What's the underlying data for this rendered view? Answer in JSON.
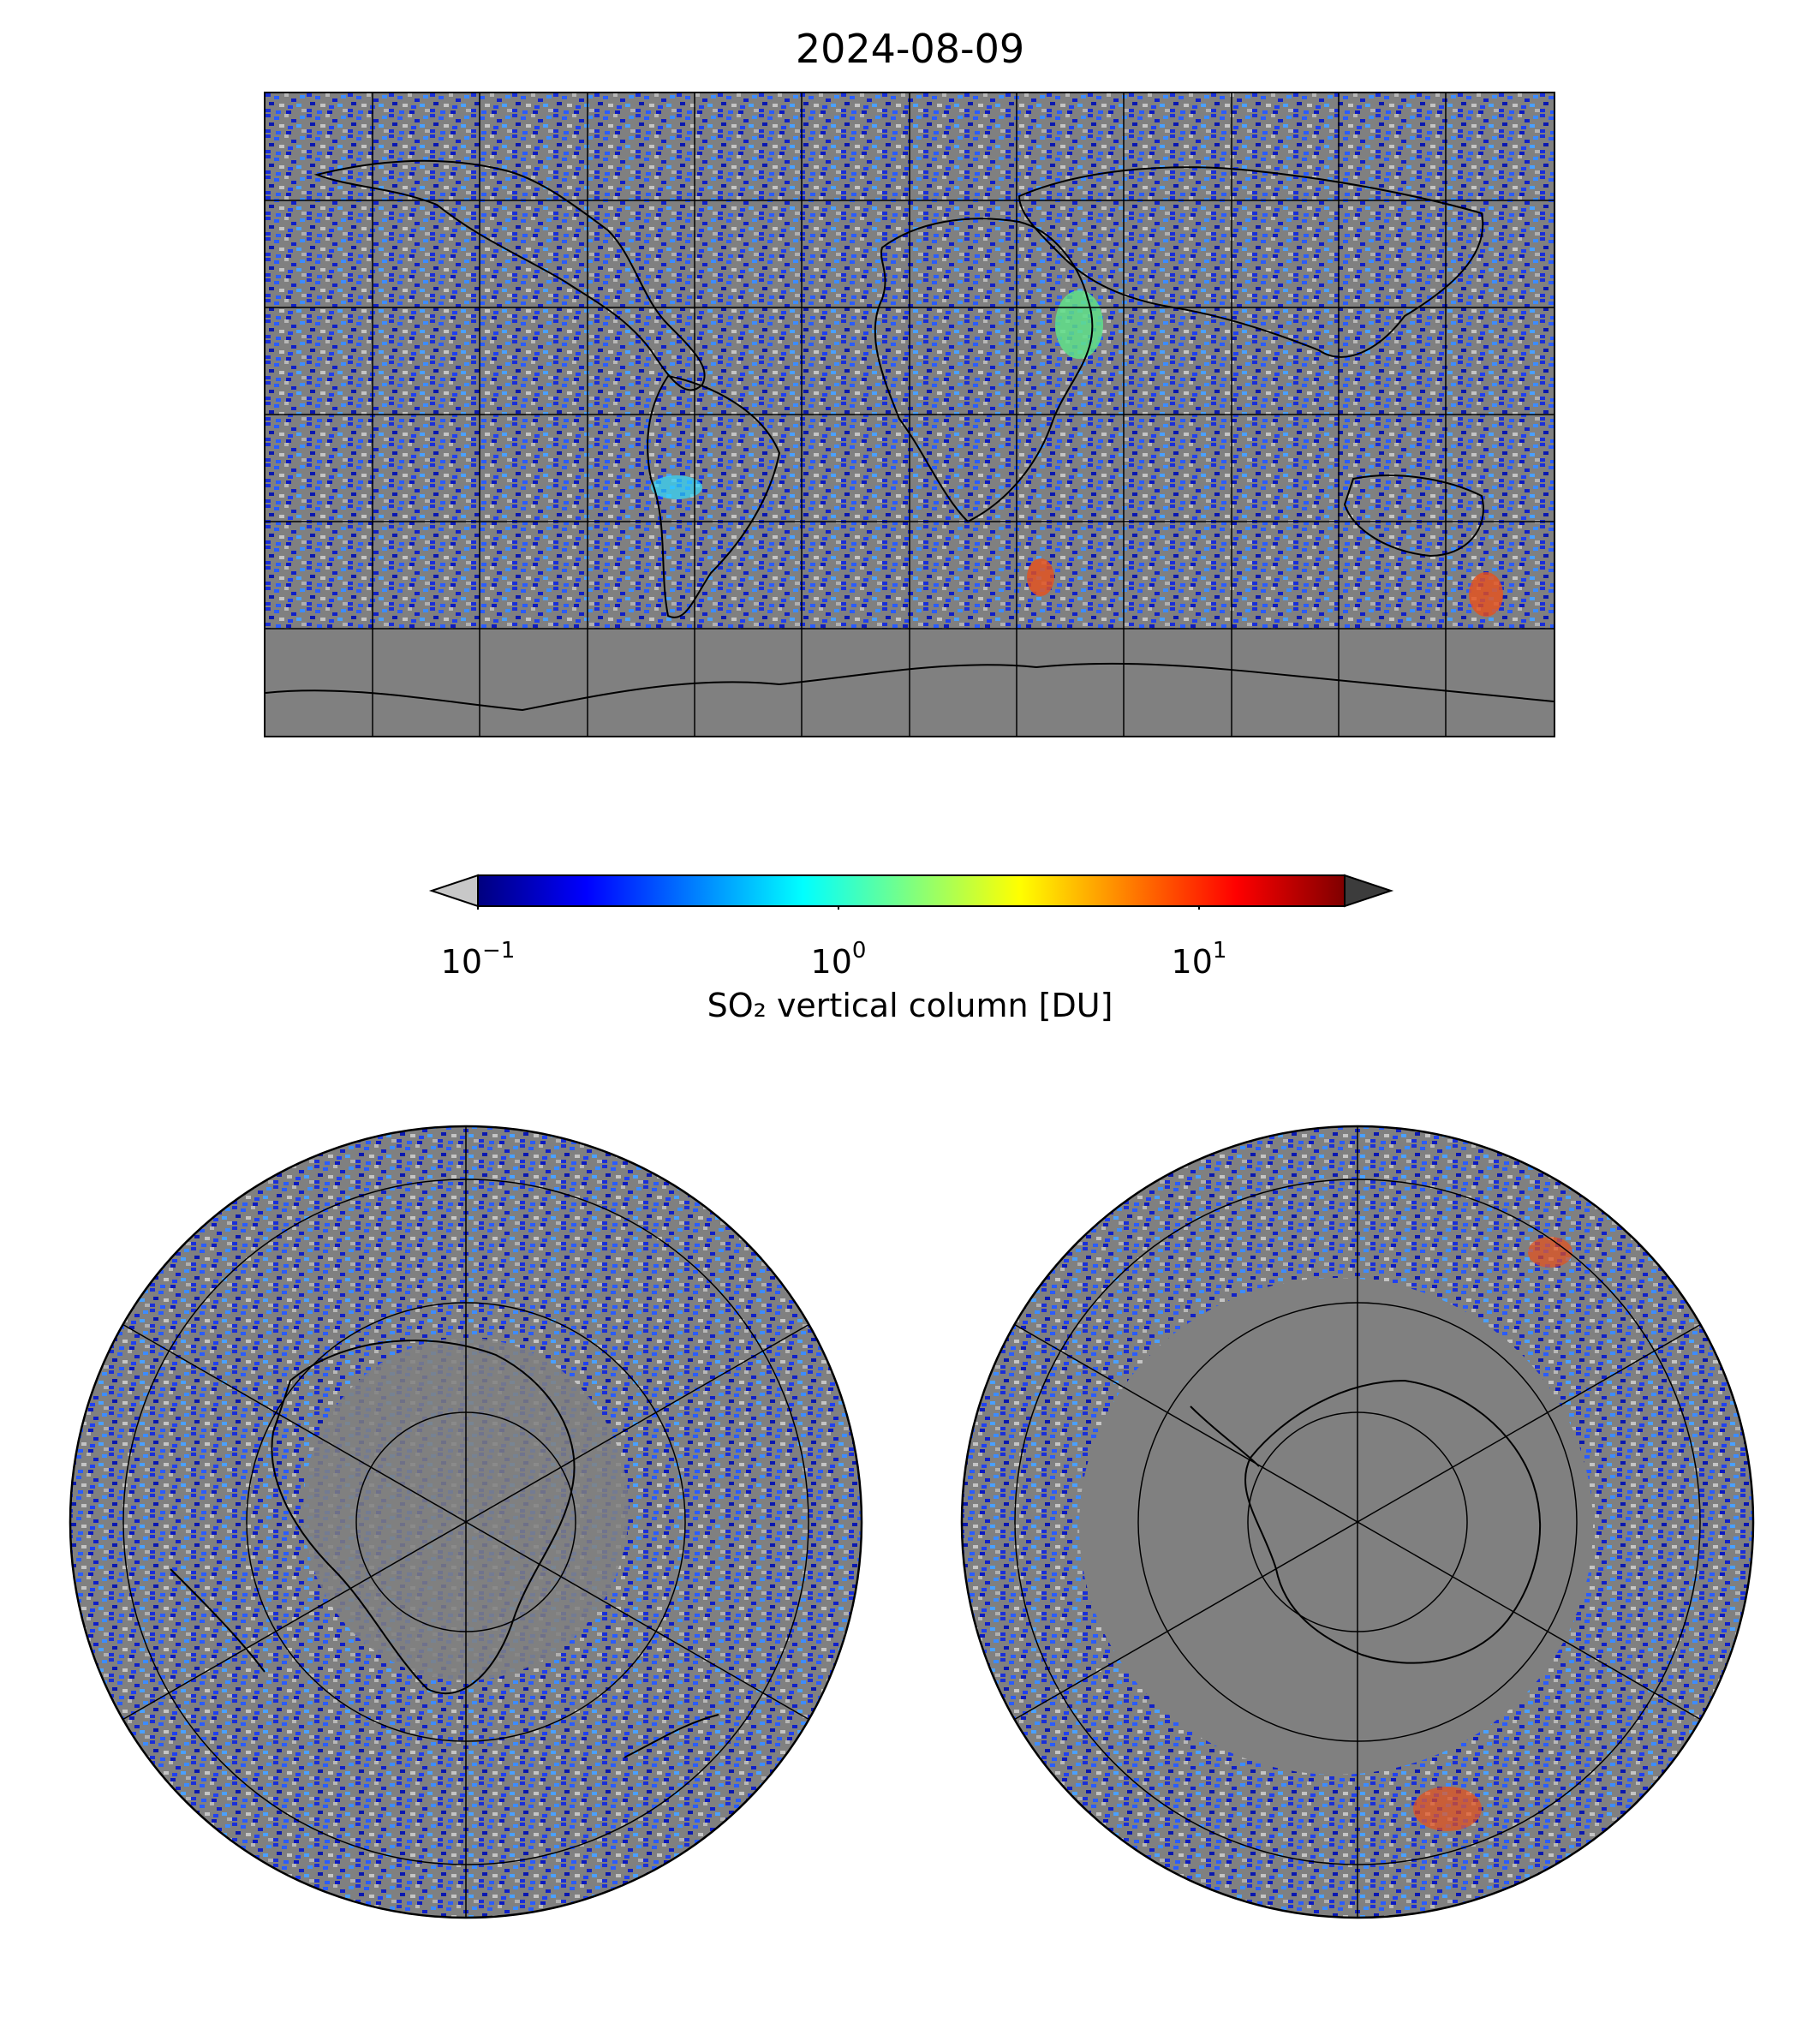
{
  "figure": {
    "title": "2024-08-09"
  },
  "colorbar": {
    "label": "SO₂ vertical column [DU]",
    "scale": "log",
    "range": [
      0.1,
      25
    ],
    "ticks": [
      {
        "base": "10",
        "exp": "−1",
        "value": 0.1
      },
      {
        "base": "10",
        "exp": "0",
        "value": 1
      },
      {
        "base": "10",
        "exp": "1",
        "value": 10
      }
    ],
    "colormap": [
      "#00007f",
      "#0000ff",
      "#007fff",
      "#00ffff",
      "#7fff7f",
      "#ffff00",
      "#ff7f00",
      "#ff0000",
      "#7f0000"
    ],
    "under_color": "#c8c8c8",
    "over_color": "#3c3c3c",
    "nodata_color": "#808080"
  },
  "panels": [
    {
      "name": "global",
      "projection": "plate-carree",
      "gridlines": {
        "lon_step": 30,
        "lat_step": 30
      }
    },
    {
      "name": "north-polar",
      "projection": "north-polar-stereographic"
    },
    {
      "name": "south-polar",
      "projection": "south-polar-stereographic"
    }
  ]
}
